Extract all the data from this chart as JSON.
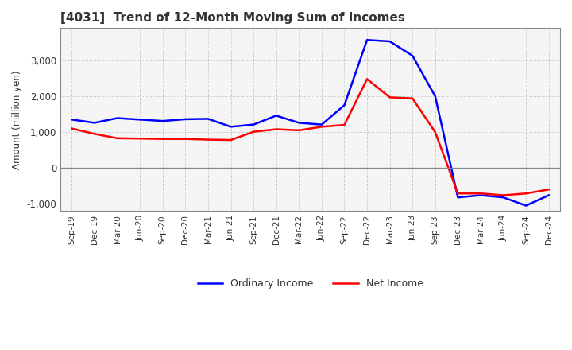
{
  "title": "[4031]  Trend of 12-Month Moving Sum of Incomes",
  "ylabel": "Amount (million yen)",
  "x_labels": [
    "Sep-19",
    "Dec-19",
    "Mar-20",
    "Jun-20",
    "Sep-20",
    "Dec-20",
    "Mar-21",
    "Jun-21",
    "Sep-21",
    "Dec-21",
    "Mar-22",
    "Jun-22",
    "Sep-22",
    "Dec-22",
    "Mar-23",
    "Jun-23",
    "Sep-23",
    "Dec-23",
    "Mar-24",
    "Jun-24",
    "Sep-24",
    "Dec-24"
  ],
  "ordinary_income": [
    1350,
    1260,
    1390,
    1350,
    1310,
    1360,
    1370,
    1150,
    1210,
    1460,
    1260,
    1210,
    1750,
    3570,
    3530,
    3130,
    2000,
    -820,
    -760,
    -820,
    -1050,
    -760
  ],
  "net_income": [
    1100,
    950,
    830,
    820,
    810,
    810,
    790,
    780,
    1010,
    1080,
    1050,
    1150,
    1200,
    2480,
    1970,
    1940,
    1000,
    -710,
    -710,
    -760,
    -710,
    -600
  ],
  "ordinary_color": "#0000ff",
  "net_color": "#ff0000",
  "ylim": [
    -1200,
    3900
  ],
  "yticks": [
    -1000,
    0,
    1000,
    2000,
    3000
  ],
  "plot_bgcolor": "#f5f5f5",
  "fig_bgcolor": "#ffffff",
  "grid_color": "#bbbbbb",
  "title_color": "#333333",
  "legend_ordinary": "Ordinary Income",
  "legend_net": "Net Income",
  "line_width": 1.8
}
